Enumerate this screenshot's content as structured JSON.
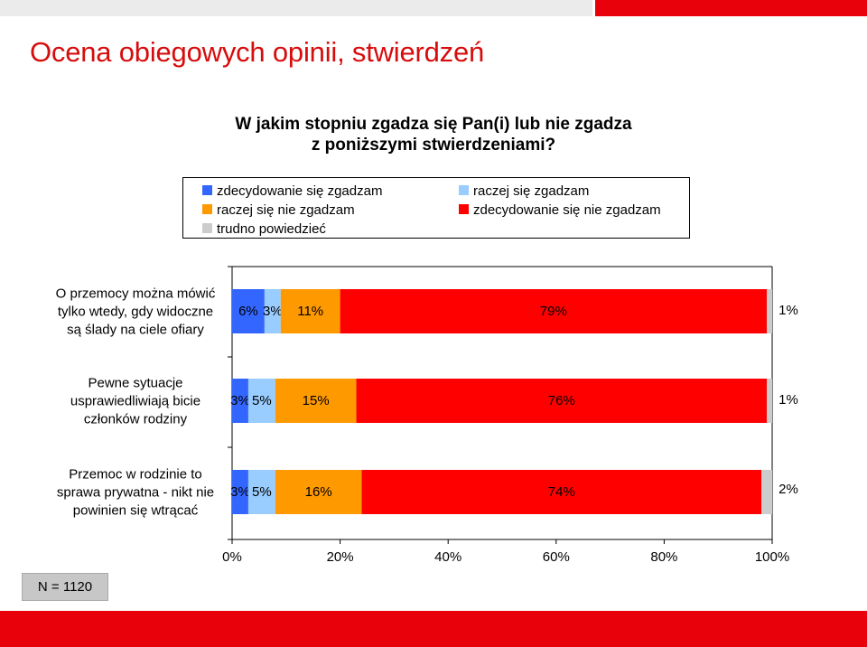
{
  "slide": {
    "title": "Ocena obiegowych opinii, stwierdzeń",
    "question_line1": "W jakim stopniu zgadza się Pan(i) lub nie zgadza",
    "question_line2": "z poniższymi stwierdzeniami?",
    "n_label": "N = 1120"
  },
  "colors": {
    "accent_red": "#e8000b",
    "title_red": "#d70c0c",
    "top_bar_gray": "#ebebeb"
  },
  "chart_data": {
    "type": "bar",
    "orientation": "horizontal",
    "stacked": true,
    "percent_stacked": true,
    "categories": [
      [
        "O przemocy można mówić",
        "tylko wtedy, gdy widoczne",
        "są ślady na ciele ofiary"
      ],
      [
        "Pewne sytuacje",
        "usprawiedliwiają bicie",
        "członków rodziny"
      ],
      [
        "Przemoc w rodzinie to",
        "sprawa prywatna - nikt nie",
        "powinien się wtrącać"
      ]
    ],
    "series": [
      {
        "name": "zdecydowanie się zgadzam",
        "color": "#3366ff",
        "values": [
          6,
          3,
          3
        ],
        "labels": [
          "6%",
          "3%",
          "3%"
        ]
      },
      {
        "name": "raczej się zgadzam",
        "color": "#99ccff",
        "values": [
          3,
          5,
          5
        ],
        "labels": [
          "3%",
          "5%",
          "5%"
        ]
      },
      {
        "name": "raczej się nie zgadzam",
        "color": "#ff9900",
        "values": [
          11,
          15,
          16
        ],
        "labels": [
          "11%",
          "15%",
          "16%"
        ]
      },
      {
        "name": "zdecydowanie się nie zgadzam",
        "color": "#ff0000",
        "values": [
          79,
          76,
          74
        ],
        "labels": [
          "79%",
          "76%",
          "74%"
        ]
      },
      {
        "name": "trudno powiedzieć",
        "color": "#cccccc",
        "values": [
          1,
          1,
          2
        ],
        "labels": [
          "1%",
          "1%",
          "2%"
        ]
      }
    ],
    "xlim": [
      0,
      100
    ],
    "x_ticks": [
      "0%",
      "20%",
      "40%",
      "60%",
      "80%",
      "100%"
    ],
    "grid": false,
    "legend_position": "top",
    "legend_entries": [
      {
        "label": "zdecydowanie się zgadzam",
        "color": "#3366ff"
      },
      {
        "label": "raczej się zgadzam",
        "color": "#99ccff"
      },
      {
        "label": "raczej się nie zgadzam",
        "color": "#ff9900"
      },
      {
        "label": "zdecydowanie się nie zgadzam",
        "color": "#ff0000"
      },
      {
        "label": "trudno powiedzieć",
        "color": "#cccccc"
      }
    ]
  }
}
